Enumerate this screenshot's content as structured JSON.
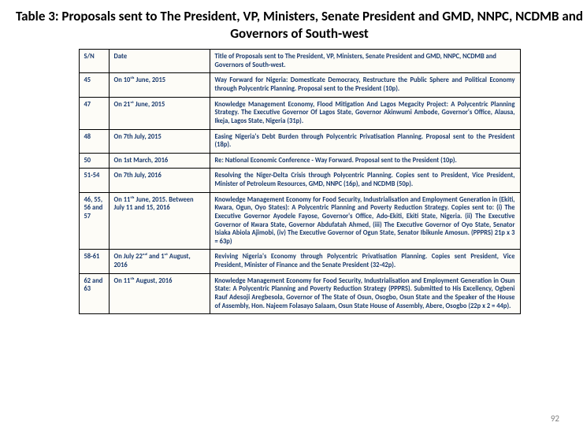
{
  "title": "Table 3: Proposals sent to The President, VP, Ministers, Senate President and GMD, NNPC, NCDMB and Governors of South-west",
  "pageNumber": "92",
  "columns": {
    "c1": "S/N",
    "c2": "Date",
    "c3": "Title of Proposals sent to The President, VP, Ministers, Senate President and GMD, NNPC, NCDMB and Governors of South-west."
  },
  "rows": [
    {
      "sn": "45",
      "date": "On 10ᵗʰ June, 2015",
      "title": "Way Forward for Nigeria: Domesticate Democracy, Restructure the Public Sphere and Political Economy through Polycentric Planning. Proposal sent to the President (10p)."
    },
    {
      "sn": "47",
      "date": "On 21ˢᵗ June, 2015",
      "title": "Knowledge Management Economy, Flood Mitigation And Lagos Megacity Project: A Polycentric Planning Strategy. The Executive Governor Of Lagos State, Governor Akinwumi Ambode, Governor's Office, Alausa, Ikeja, Lagos State, Nigeria (31p)."
    },
    {
      "sn": "48",
      "date": "On 7th July, 2015",
      "title": "Easing Nigeria's Debt Burden through Polycentric Privatisation Planning. Proposal sent to the President (18p)."
    },
    {
      "sn": "50",
      "date": "On 1st March, 2016",
      "title": "Re: National Economic Conference - Way Forward. Proposal sent to the President (10p)."
    },
    {
      "sn": "51-54",
      "date": "On 7th July, 2016",
      "title": "Resolving the Niger-Delta Crisis through Polycentric Planning. Copies sent to President, Vice President, Minister of Petroleum Resources, GMD, NNPC (16p), and NCDMB (50p)."
    },
    {
      "sn": "46, 55, 56 and 57",
      "date": "On 11ᵗʰ June, 2015. Between July 11 and 15, 2016",
      "title": "Knowledge Management Economy for Food Security, Industrialisation and Employment Generation in (Ekiti, Kwara, Ogun, Oyo States): A Polycentric Planning and Poverty Reduction Strategy. Copies sent to:\n(i) The Executive Governor Ayodele Fayose, Governor's Office, Ado-Ekiti, Ekiti State, Nigeria. (ii) The Executive Governor of Kwara State, Governor Abdufatah Ahmed, (iii) The Executive Governor of Oyo State, Senator Isiaka Abiola Ajimobi, (iv) The Executive Governor of Ogun State, Senator Ibikunle Amosun. (PPPRS) 21p x 3 = 63p)"
    },
    {
      "sn": "58-61",
      "date": "On July 22ⁿᵈ and 1ˢᵗ August, 2016",
      "title": "Reviving Nigeria's Economy through Polycentric Privatisation Planning. Copies sent President, Vice President, Minister of Finance and the Senate President (32-42p)."
    },
    {
      "sn": "62 and 63",
      "date": "On 11ᵗʰ August, 2016",
      "title": "Knowledge Management Economy for Food Security, Industrialisation and Employment Generation in Osun State: A Polycentric Planning and Poverty Reduction Strategy (PPPRS). Submitted to His Excellency, Ogbeni Rauf Adesoji Aregbesola, Governor of The State of Osun, Osogbo, Osun State and the Speaker of the House of Assembly, Hon. Najeem Folasayo Salaam, Osun State House of Assembly, Abere, Osogbo (22p x 2 = 44p)."
    }
  ]
}
